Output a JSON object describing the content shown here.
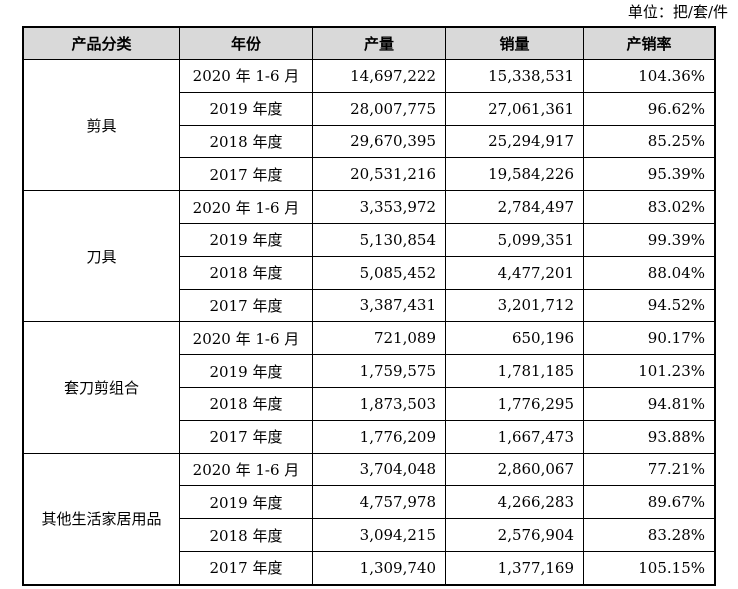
{
  "unit_label": "单位：把/套/件",
  "headers": [
    "产品分类",
    "年份",
    "产量",
    "销量",
    "产销率"
  ],
  "groups": [
    {
      "category": "剪具",
      "rows": [
        {
          "year": "2020 年 1-6 月",
          "production": "14,697,222",
          "sales": "15,338,531",
          "rate": "104.36%"
        },
        {
          "year": "2019 年度",
          "production": "28,007,775",
          "sales": "27,061,361",
          "rate": "96.62%"
        },
        {
          "year": "2018 年度",
          "production": "29,670,395",
          "sales": "25,294,917",
          "rate": "85.25%"
        },
        {
          "year": "2017 年度",
          "production": "20,531,216",
          "sales": "19,584,226",
          "rate": "95.39%"
        }
      ]
    },
    {
      "category": "刀具",
      "rows": [
        {
          "year": "2020 年 1-6 月",
          "production": "3,353,972",
          "sales": "2,784,497",
          "rate": "83.02%"
        },
        {
          "year": "2019 年度",
          "production": "5,130,854",
          "sales": "5,099,351",
          "rate": "99.39%"
        },
        {
          "year": "2018 年度",
          "production": "5,085,452",
          "sales": "4,477,201",
          "rate": "88.04%"
        },
        {
          "year": "2017 年度",
          "production": "3,387,431",
          "sales": "3,201,712",
          "rate": "94.52%"
        }
      ]
    },
    {
      "category": "套刀剪组合",
      "rows": [
        {
          "year": "2020 年 1-6 月",
          "production": "721,089",
          "sales": "650,196",
          "rate": "90.17%"
        },
        {
          "year": "2019 年度",
          "production": "1,759,575",
          "sales": "1,781,185",
          "rate": "101.23%"
        },
        {
          "year": "2018 年度",
          "production": "1,873,503",
          "sales": "1,776,295",
          "rate": "94.81%"
        },
        {
          "year": "2017 年度",
          "production": "1,776,209",
          "sales": "1,667,473",
          "rate": "93.88%"
        }
      ]
    },
    {
      "category": "其他生活家居用品",
      "rows": [
        {
          "year": "2020 年 1-6 月",
          "production": "3,704,048",
          "sales": "2,860,067",
          "rate": "77.21%"
        },
        {
          "year": "2019 年度",
          "production": "4,757,978",
          "sales": "4,266,283",
          "rate": "89.67%"
        },
        {
          "year": "2018 年度",
          "production": "3,094,215",
          "sales": "2,576,904",
          "rate": "83.28%"
        },
        {
          "year": "2017 年度",
          "production": "1,309,740",
          "sales": "1,377,169",
          "rate": "105.15%"
        }
      ]
    }
  ]
}
